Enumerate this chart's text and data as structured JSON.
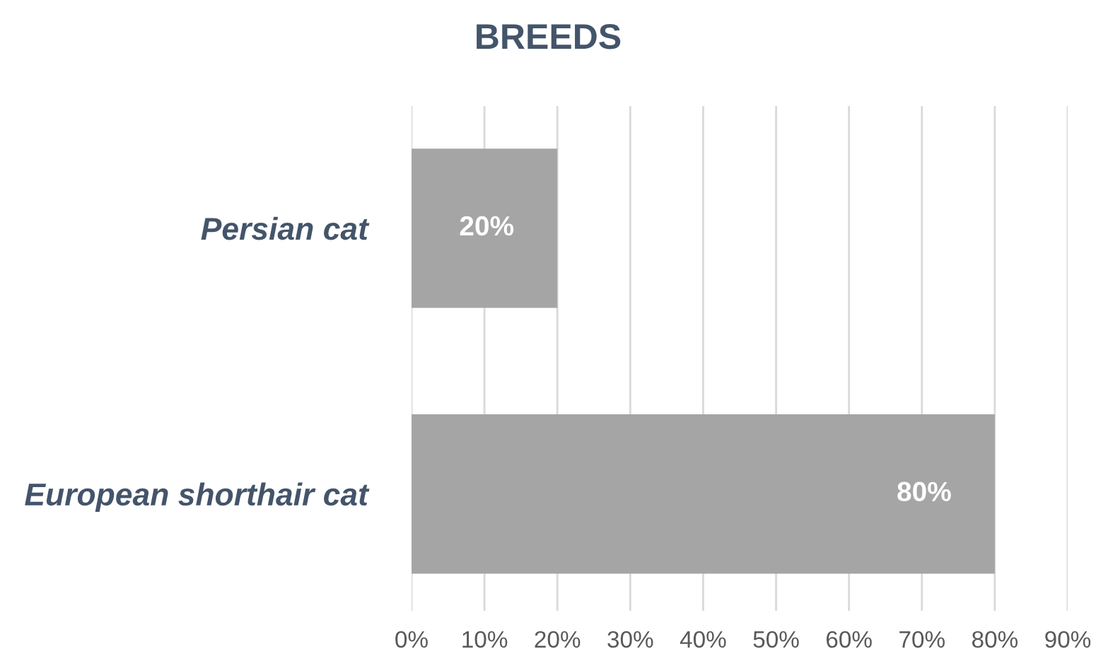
{
  "chart_data": {
    "type": "bar",
    "orientation": "horizontal",
    "title": "BREEDS",
    "categories": [
      "Persian cat",
      "European shorthair cat"
    ],
    "values": [
      20,
      80
    ],
    "color": "#a5a5a5",
    "value_labels": [
      "20%",
      "80%"
    ],
    "xlim": [
      0,
      90
    ],
    "xticks": [
      {
        "value": 0,
        "label": "0%"
      },
      {
        "value": 10,
        "label": "10%"
      },
      {
        "value": 20,
        "label": "20%"
      },
      {
        "value": 30,
        "label": "30%"
      },
      {
        "value": 40,
        "label": "40%"
      },
      {
        "value": 50,
        "label": "50%"
      },
      {
        "value": 60,
        "label": "60%"
      },
      {
        "value": 70,
        "label": "70%"
      },
      {
        "value": 80,
        "label": "80%"
      },
      {
        "value": 90,
        "label": "90%"
      }
    ],
    "grid": "x",
    "legend": false
  }
}
